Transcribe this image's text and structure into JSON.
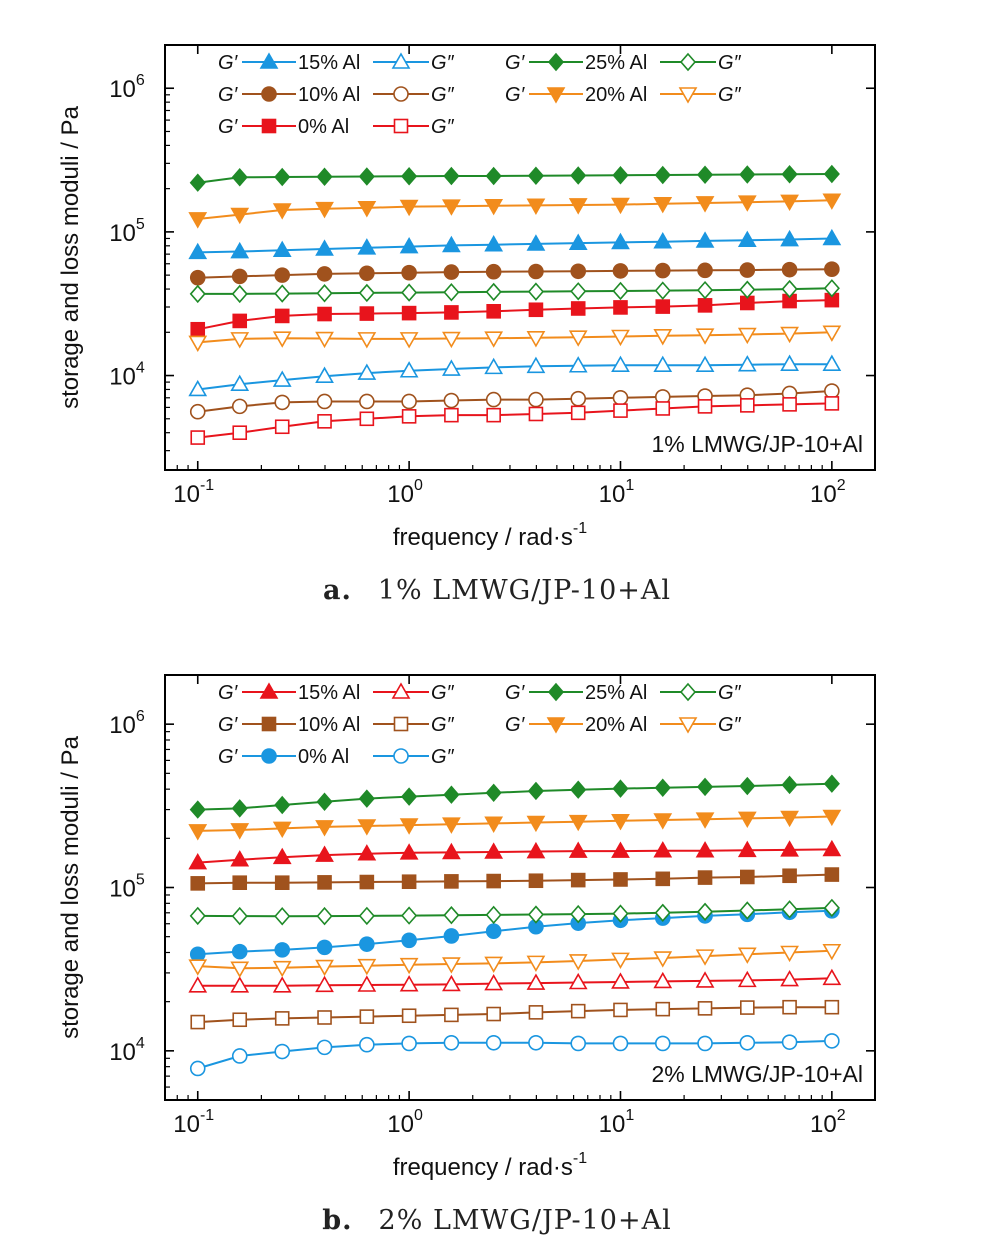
{
  "chart_data": [
    {
      "type": "line",
      "panel_letter": "a.",
      "caption": "1% LMWG/JP-10+Al",
      "annotation": "1% LMWG/JP-10+Al",
      "xlabel": "frequency / rad·s",
      "xlabel_sup": "-1",
      "ylabel": "storage and loss moduli / Pa",
      "xscale": "log",
      "yscale": "log",
      "xlim": [
        0.07,
        160
      ],
      "ylim": [
        2200,
        2000000
      ],
      "xticks": [
        {
          "base": "10",
          "exp": "-1"
        },
        {
          "base": "10",
          "exp": "0"
        },
        {
          "base": "10",
          "exp": "1"
        },
        {
          "base": "10",
          "exp": "2"
        }
      ],
      "yticks": [
        {
          "base": "10",
          "exp": "4"
        },
        {
          "base": "10",
          "exp": "5"
        },
        {
          "base": "10",
          "exp": "6"
        }
      ],
      "legend_g1": "G′",
      "legend_g2": "G″",
      "legend": [
        [
          "15% Al",
          "25% Al"
        ],
        [
          "10% Al",
          "20% Al"
        ],
        [
          "0%  Al"
        ]
      ],
      "x": [
        0.1,
        0.158,
        0.251,
        0.398,
        0.631,
        1.0,
        1.585,
        2.512,
        3.981,
        6.31,
        10.0,
        15.85,
        25.12,
        39.81,
        63.1,
        100.0
      ],
      "series": [
        {
          "name": "15% Al",
          "modulus": "G′",
          "color": "#1a96e0",
          "marker": "triangle-up",
          "filled": true,
          "values": [
            72000,
            73000,
            74500,
            76000,
            77500,
            79000,
            80500,
            81500,
            82500,
            83500,
            84500,
            85500,
            86500,
            87500,
            88500,
            90000
          ]
        },
        {
          "name": "15% Al",
          "modulus": "G″",
          "color": "#1a96e0",
          "marker": "triangle-up",
          "filled": false,
          "values": [
            8000,
            8700,
            9300,
            9900,
            10400,
            10800,
            11100,
            11400,
            11600,
            11700,
            11800,
            11800,
            11800,
            11900,
            12000,
            12000
          ]
        },
        {
          "name": "10% Al",
          "modulus": "G′",
          "color": "#a0521d",
          "marker": "circle",
          "filled": true,
          "values": [
            48000,
            49000,
            50000,
            51000,
            51500,
            52000,
            52500,
            52800,
            53000,
            53200,
            53500,
            53800,
            54000,
            54200,
            54600,
            55000
          ]
        },
        {
          "name": "10% Al",
          "modulus": "G″",
          "color": "#a0521d",
          "marker": "circle",
          "filled": false,
          "values": [
            5600,
            6100,
            6500,
            6600,
            6600,
            6600,
            6700,
            6800,
            6800,
            6900,
            7000,
            7100,
            7200,
            7300,
            7500,
            7800
          ]
        },
        {
          "name": "0%  Al",
          "modulus": "G′",
          "color": "#e8141c",
          "marker": "square",
          "filled": true,
          "values": [
            21000,
            24000,
            26000,
            26800,
            27000,
            27200,
            27500,
            28000,
            28700,
            29300,
            29800,
            30200,
            30800,
            32000,
            33000,
            33500
          ]
        },
        {
          "name": "0%  Al",
          "modulus": "G″",
          "color": "#e8141c",
          "marker": "square",
          "filled": false,
          "values": [
            3700,
            4000,
            4400,
            4800,
            5000,
            5200,
            5300,
            5300,
            5400,
            5500,
            5700,
            5900,
            6100,
            6200,
            6300,
            6400
          ]
        },
        {
          "name": "25% Al",
          "modulus": "G′",
          "color": "#1f8a28",
          "marker": "diamond",
          "filled": true,
          "values": [
            220000,
            240000,
            241000,
            242000,
            243000,
            244000,
            245000,
            245000,
            246000,
            247000,
            248000,
            249000,
            250000,
            251000,
            252000,
            253000
          ]
        },
        {
          "name": "25% Al",
          "modulus": "G″",
          "color": "#1f8a28",
          "marker": "diamond",
          "filled": false,
          "values": [
            37000,
            37000,
            37200,
            37400,
            37600,
            37800,
            38000,
            38200,
            38400,
            38600,
            38800,
            39000,
            39300,
            39600,
            40000,
            40500
          ]
        },
        {
          "name": "20% Al",
          "modulus": "G′",
          "color": "#f28c1c",
          "marker": "triangle-down",
          "filled": true,
          "values": [
            123000,
            132000,
            142000,
            145000,
            147000,
            150000,
            151000,
            152000,
            153000,
            154000,
            155000,
            157000,
            159000,
            161000,
            163000,
            166000
          ]
        },
        {
          "name": "20% Al",
          "modulus": "G″",
          "color": "#f28c1c",
          "marker": "triangle-down",
          "filled": false,
          "values": [
            17000,
            18000,
            18200,
            18100,
            18000,
            18000,
            18100,
            18200,
            18300,
            18500,
            18700,
            18900,
            19100,
            19300,
            19600,
            20000
          ]
        }
      ]
    },
    {
      "type": "line",
      "panel_letter": "b.",
      "caption": "2% LMWG/JP-10+Al",
      "annotation": "2% LMWG/JP-10+Al",
      "xlabel": "frequency / rad·s",
      "xlabel_sup": "-1",
      "ylabel": "storage and loss moduli / Pa",
      "xscale": "log",
      "yscale": "log",
      "xlim": [
        0.07,
        160
      ],
      "ylim": [
        5000,
        2000000
      ],
      "xticks": [
        {
          "base": "10",
          "exp": "-1"
        },
        {
          "base": "10",
          "exp": "0"
        },
        {
          "base": "10",
          "exp": "1"
        },
        {
          "base": "10",
          "exp": "2"
        }
      ],
      "yticks": [
        {
          "base": "10",
          "exp": "4"
        },
        {
          "base": "10",
          "exp": "5"
        },
        {
          "base": "10",
          "exp": "6"
        }
      ],
      "legend_g1": "G′",
      "legend_g2": "G″",
      "legend": [
        [
          "15% Al",
          "25% Al"
        ],
        [
          "10% Al",
          "20% Al"
        ],
        [
          "0%  Al"
        ]
      ],
      "x": [
        0.1,
        0.158,
        0.251,
        0.398,
        0.631,
        1.0,
        1.585,
        2.512,
        3.981,
        6.31,
        10.0,
        15.85,
        25.12,
        39.81,
        63.1,
        100.0
      ],
      "series": [
        {
          "name": "15% Al",
          "modulus": "G′",
          "color": "#e8141c",
          "marker": "triangle-up",
          "filled": true,
          "values": [
            142000,
            148000,
            153000,
            158000,
            161000,
            163000,
            164000,
            165000,
            166000,
            167000,
            167000,
            168000,
            168000,
            169000,
            170000,
            171000
          ]
        },
        {
          "name": "15% Al",
          "modulus": "G″",
          "color": "#e8141c",
          "marker": "triangle-up",
          "filled": false,
          "values": [
            25000,
            25000,
            25000,
            25200,
            25300,
            25400,
            25500,
            25800,
            26000,
            26200,
            26400,
            26600,
            26800,
            27000,
            27300,
            27800
          ]
        },
        {
          "name": "10% Al",
          "modulus": "G′",
          "color": "#a0521d",
          "marker": "square",
          "filled": true,
          "values": [
            106000,
            107000,
            107000,
            107500,
            108000,
            108500,
            109000,
            109500,
            110000,
            111000,
            112000,
            113000,
            115000,
            116000,
            118000,
            120000
          ]
        },
        {
          "name": "10% Al",
          "modulus": "G″",
          "color": "#a0521d",
          "marker": "square",
          "filled": false,
          "values": [
            15000,
            15500,
            15800,
            16000,
            16200,
            16400,
            16600,
            16800,
            17200,
            17500,
            17800,
            18000,
            18200,
            18400,
            18500,
            18500
          ]
        },
        {
          "name": "0%  Al",
          "modulus": "G′",
          "color": "#1a96e0",
          "marker": "circle",
          "filled": true,
          "values": [
            39000,
            40500,
            41500,
            43000,
            45000,
            47500,
            50500,
            54000,
            57500,
            60500,
            63000,
            65000,
            67000,
            68500,
            70500,
            72000
          ]
        },
        {
          "name": "0%  Al",
          "modulus": "G″",
          "color": "#1a96e0",
          "marker": "circle",
          "filled": false,
          "values": [
            7800,
            9300,
            9900,
            10500,
            10900,
            11100,
            11200,
            11200,
            11200,
            11100,
            11100,
            11100,
            11100,
            11200,
            11300,
            11500
          ]
        },
        {
          "name": "25% Al",
          "modulus": "G′",
          "color": "#1f8a28",
          "marker": "diamond",
          "filled": true,
          "values": [
            300000,
            305000,
            320000,
            335000,
            350000,
            360000,
            370000,
            380000,
            390000,
            397000,
            403000,
            408000,
            413000,
            418000,
            425000,
            432000
          ]
        },
        {
          "name": "25% Al",
          "modulus": "G″",
          "color": "#1f8a28",
          "marker": "diamond",
          "filled": false,
          "values": [
            67000,
            66800,
            66700,
            66800,
            67000,
            67300,
            67700,
            68000,
            68300,
            68700,
            69200,
            70000,
            71000,
            72300,
            73500,
            75000
          ]
        },
        {
          "name": "20% Al",
          "modulus": "G′",
          "color": "#f28c1c",
          "marker": "triangle-down",
          "filled": true,
          "values": [
            222000,
            225000,
            230000,
            235000,
            238000,
            241000,
            244000,
            247000,
            250000,
            253000,
            256000,
            259000,
            262000,
            265000,
            268000,
            272000
          ]
        },
        {
          "name": "20% Al",
          "modulus": "G″",
          "color": "#f28c1c",
          "marker": "triangle-down",
          "filled": false,
          "values": [
            33000,
            32000,
            32300,
            32800,
            33200,
            33700,
            34000,
            34300,
            34800,
            35500,
            36300,
            37000,
            38000,
            39000,
            40000,
            41000
          ]
        }
      ]
    }
  ]
}
